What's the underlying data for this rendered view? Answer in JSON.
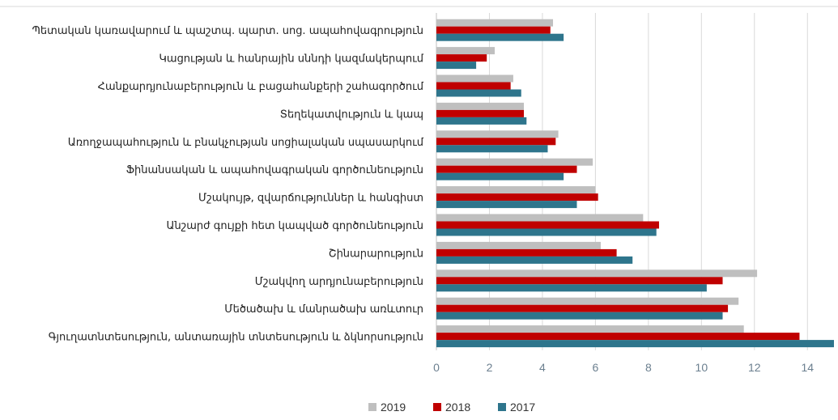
{
  "chart_data": {
    "type": "bar",
    "orientation": "horizontal",
    "categories": [
      "Պետական կառավարում և պաշտպ. պարտ. սոց. ապահովագրություն",
      "Կացության և հանրային սննդի կազմակերպում",
      "Հանքարդյունաբերություն և բացահանքերի շահագործում",
      "Տեղեկատվություն և կապ",
      "Առողջապահություն և բնակչության սոցիալական սպասարկում",
      "Ֆինանսական և ապահովագրական գործունեություն",
      "Մշակույթ, զվարճություններ և հանգիստ",
      "Անշարժ գույքի հետ կապված գործունեություն",
      "Շինարարություն",
      "Մշակվող արդյունաբերություն",
      "Մեծածախ և մանրածախ առևտուր",
      "Գյուղատնտեսություն, անտառային տնտեսություն և ձկնորսություն"
    ],
    "series": [
      {
        "name": "2019",
        "color": "#bfbfbf",
        "values": [
          4.4,
          2.2,
          2.9,
          3.3,
          4.6,
          5.9,
          6.0,
          7.8,
          6.2,
          12.1,
          11.4,
          11.6
        ]
      },
      {
        "name": "2018",
        "color": "#c00000",
        "values": [
          4.3,
          1.9,
          2.8,
          3.3,
          4.5,
          5.3,
          6.1,
          8.4,
          6.8,
          10.8,
          11.0,
          13.7
        ]
      },
      {
        "name": "2017",
        "color": "#2e758c",
        "values": [
          4.8,
          1.5,
          3.2,
          3.4,
          4.2,
          4.8,
          5.3,
          8.3,
          7.4,
          10.2,
          10.8,
          15.0
        ]
      }
    ],
    "xlim": [
      0,
      15
    ],
    "x_ticks": [
      "0",
      "2",
      "4",
      "6",
      "8",
      "10",
      "12",
      "14"
    ],
    "grid": true,
    "legend_position": "bottom",
    "title": "",
    "xlabel": "",
    "ylabel": ""
  }
}
